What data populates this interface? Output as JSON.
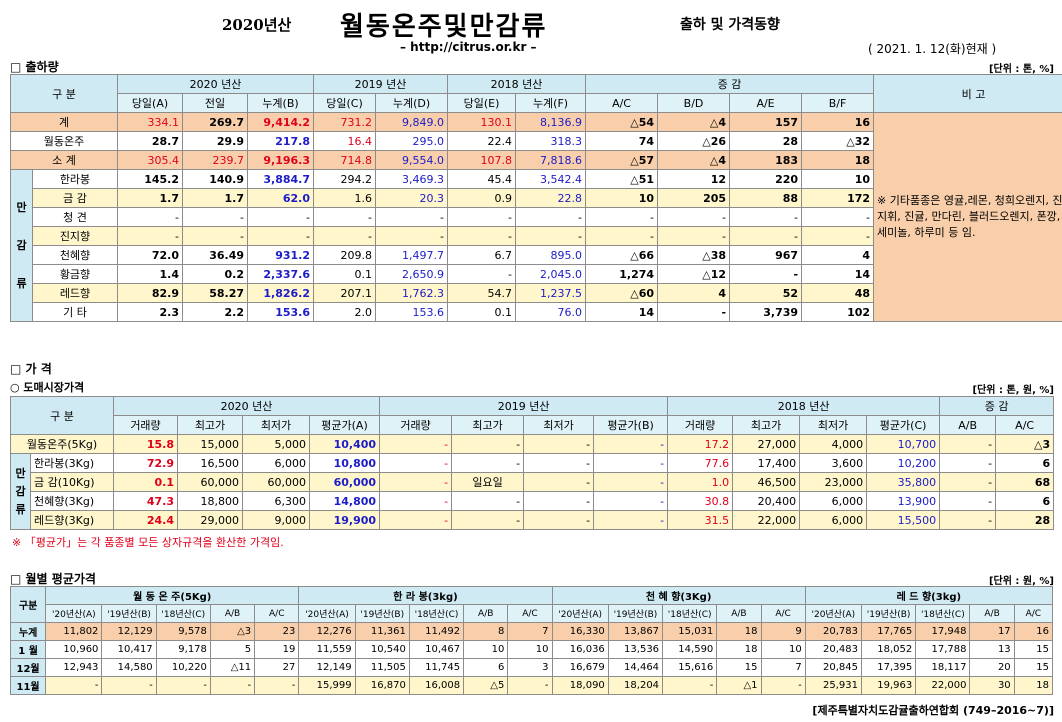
{
  "header": {
    "prefix": "2020년산",
    "title": "월동온주및만감류",
    "subtitle": "출하 및 가격동향",
    "url": "– http://citrus.or.kr –",
    "date": "( 2021. 1. 12(화)현재 )"
  },
  "s1": {
    "title": "□ 출하량",
    "unit": "[단위 : 톤, %]",
    "h_gubun": "구 분",
    "h_2020": "2020 년산",
    "h_2019": "2019 년산",
    "h_2018": "2018 년산",
    "h_change": "증 감",
    "h_note": "비 고",
    "sub": [
      "당일(A)",
      "전일",
      "누계(B)",
      "당일(C)",
      "누계(D)",
      "당일(E)",
      "누계(F)",
      "A/C",
      "B/D",
      "A/E",
      "B/F"
    ],
    "side": "만감류",
    "note": "※ 기타품종은 영귤,레몬, 청희오렌지, 진지휘, 진귤, 만다린, 블러드오렌지, 폰깡,세미놀, 하루미 등 임.",
    "rows": [
      {
        "name": "계",
        "v": [
          "334.1",
          "269.7",
          "9,414.2",
          "731.2",
          "9,849.0",
          "130.1",
          "8,136.9",
          "△54",
          "△4",
          "157",
          "16"
        ]
      },
      {
        "name": "월동온주",
        "v": [
          "28.7",
          "29.9",
          "217.8",
          "16.4",
          "295.0",
          "22.4",
          "318.3",
          "74",
          "△26",
          "28",
          "△32"
        ]
      },
      {
        "name": "소 계",
        "v": [
          "305.4",
          "239.7",
          "9,196.3",
          "714.8",
          "9,554.0",
          "107.8",
          "7,818.6",
          "△57",
          "△4",
          "183",
          "18"
        ]
      },
      {
        "name": "한라봉",
        "v": [
          "145.2",
          "140.9",
          "3,884.7",
          "294.2",
          "3,469.3",
          "45.4",
          "3,542.4",
          "△51",
          "12",
          "220",
          "10"
        ]
      },
      {
        "name": "금 감",
        "v": [
          "1.7",
          "1.7",
          "62.0",
          "1.6",
          "20.3",
          "0.9",
          "22.8",
          "10",
          "205",
          "88",
          "172"
        ]
      },
      {
        "name": "청 견",
        "v": [
          "-",
          "-",
          "-",
          "-",
          "-",
          "-",
          "-",
          "-",
          "-",
          "-",
          "-"
        ]
      },
      {
        "name": "진지향",
        "v": [
          "-",
          "-",
          "-",
          "-",
          "-",
          "-",
          "-",
          "-",
          "-",
          "-",
          "-"
        ]
      },
      {
        "name": "천혜향",
        "v": [
          "72.0",
          "36.49",
          "931.2",
          "209.8",
          "1,497.7",
          "6.7",
          "895.0",
          "△66",
          "△38",
          "967",
          "4"
        ]
      },
      {
        "name": "황금향",
        "v": [
          "1.4",
          "0.2",
          "2,337.6",
          "0.1",
          "2,650.9",
          "-",
          "2,045.0",
          "1,274",
          "△12",
          "-",
          "14"
        ]
      },
      {
        "name": "레드향",
        "v": [
          "82.9",
          "58.27",
          "1,826.2",
          "207.1",
          "1,762.3",
          "54.7",
          "1,237.5",
          "△60",
          "4",
          "52",
          "48"
        ]
      },
      {
        "name": "기 타",
        "v": [
          "2.3",
          "2.2",
          "153.6",
          "2.0",
          "153.6",
          "0.1",
          "76.0",
          "14",
          "-",
          "3,739",
          "102"
        ]
      }
    ]
  },
  "s2": {
    "title": "□ 가 격",
    "subtitle": "○ 도매시장가격",
    "unit": "[단위 : 톤, 원, %]",
    "h_gubun": "구 분",
    "h_2020": "2020 년산",
    "h_2019": "2019 년산",
    "h_2018": "2018 년산",
    "h_change": "증 감",
    "sub": [
      "거래량",
      "최고가",
      "최저가",
      "평균가(A)",
      "거래량",
      "최고가",
      "최저가",
      "평균가(B)",
      "거래량",
      "최고가",
      "최저가",
      "평균가(C)",
      "A/B",
      "A/C"
    ],
    "side": "만감류",
    "rows": [
      {
        "name": "월동온주(5Kg)",
        "v": [
          "15.8",
          "15,000",
          "5,000",
          "10,400",
          "-",
          "-",
          "-",
          "-",
          "17.2",
          "27,000",
          "4,000",
          "10,700",
          "-",
          "△3"
        ]
      },
      {
        "name": "한라봉(3Kg)",
        "v": [
          "72.9",
          "16,500",
          "6,000",
          "10,800",
          "-",
          "-",
          "-",
          "-",
          "77.6",
          "17,400",
          "3,600",
          "10,200",
          "-",
          "6"
        ]
      },
      {
        "name": "금 감(10Kg)",
        "v": [
          "0.1",
          "60,000",
          "60,000",
          "60,000",
          "-",
          "일요일",
          "-",
          "-",
          "1.0",
          "46,500",
          "23,000",
          "35,800",
          "-",
          "68"
        ]
      },
      {
        "name": "천혜향(3Kg)",
        "v": [
          "47.3",
          "18,800",
          "6,300",
          "14,800",
          "-",
          "-",
          "-",
          "-",
          "30.8",
          "20,400",
          "6,000",
          "13,900",
          "-",
          "6"
        ]
      },
      {
        "name": "레드향(3Kg)",
        "v": [
          "24.4",
          "29,000",
          "9,000",
          "19,900",
          "-",
          "-",
          "-",
          "-",
          "31.5",
          "22,000",
          "6,000",
          "15,500",
          "-",
          "28"
        ]
      }
    ],
    "note": "※ 「평균가」는 각 품종별 모든 상자규격을 환산한 가격임."
  },
  "s3": {
    "title": "□ 월별 평균가격",
    "unit": "[단위 : 원, %]",
    "h_gubun": "구분",
    "groups": [
      "월 동 온 주(5Kg)",
      "한 라 봉(3kg)",
      "천 혜 향(3Kg)",
      "레 드 향(3kg)"
    ],
    "sub": [
      "'20년산(A)",
      "'19년산(B)",
      "'18년산(C)",
      "A/B",
      "A/C"
    ],
    "rows": [
      {
        "name": "누계",
        "v": [
          "11,802",
          "12,129",
          "9,578",
          "△3",
          "23",
          "12,276",
          "11,361",
          "11,492",
          "8",
          "7",
          "16,330",
          "13,867",
          "15,031",
          "18",
          "9",
          "20,783",
          "17,765",
          "17,948",
          "17",
          "16"
        ]
      },
      {
        "name": "1 월",
        "v": [
          "10,960",
          "10,417",
          "9,178",
          "5",
          "19",
          "11,559",
          "10,540",
          "10,467",
          "10",
          "10",
          "16,036",
          "13,536",
          "14,590",
          "18",
          "10",
          "20,483",
          "18,052",
          "17,788",
          "13",
          "15"
        ]
      },
      {
        "name": "12월",
        "v": [
          "12,943",
          "14,580",
          "10,220",
          "△11",
          "27",
          "12,149",
          "11,505",
          "11,745",
          "6",
          "3",
          "16,679",
          "14,464",
          "15,616",
          "15",
          "7",
          "20,845",
          "17,395",
          "18,117",
          "20",
          "15"
        ]
      },
      {
        "name": "11월",
        "v": [
          "-",
          "-",
          "-",
          "-",
          "-",
          "15,999",
          "16,870",
          "16,008",
          "△5",
          "-",
          "18,090",
          "18,204",
          "-",
          "△1",
          "-",
          "25,931",
          "19,963",
          "22,000",
          "30",
          "18"
        ]
      }
    ]
  },
  "footer": "[제주특별자치도감귤출하연합회 (749–2016~7)]"
}
